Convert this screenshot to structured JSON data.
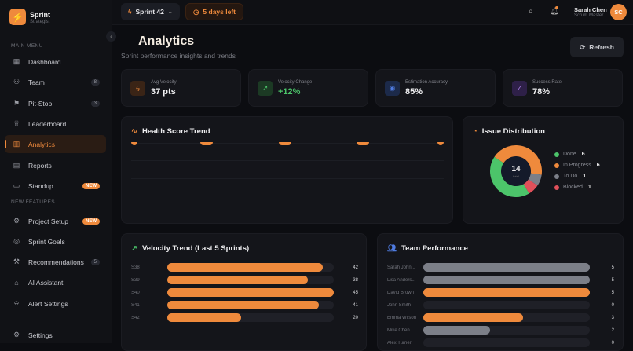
{
  "brand": {
    "name": "Sprint",
    "sub": "Strategist"
  },
  "sidebar": {
    "main_menu_label": "MAIN MENU",
    "new_features_label": "NEW FEATURES",
    "items": [
      {
        "label": "Dashboard",
        "icon": "grid-icon"
      },
      {
        "label": "Team",
        "icon": "users-icon",
        "badge": "8"
      },
      {
        "label": "Pit-Stop",
        "icon": "flag-icon",
        "badge": "3"
      },
      {
        "label": "Leaderboard",
        "icon": "trophy-icon"
      },
      {
        "label": "Analytics",
        "icon": "bar-chart-icon",
        "active": true
      },
      {
        "label": "Reports",
        "icon": "file-icon"
      },
      {
        "label": "Standup",
        "icon": "message-icon",
        "badge": "NEW"
      },
      {
        "label": "Project Setup",
        "icon": "gear-cog-icon",
        "badge": "NEW"
      },
      {
        "label": "Sprint Goals",
        "icon": "target-icon"
      },
      {
        "label": "Recommendations",
        "icon": "wrench-icon",
        "badge": "5"
      },
      {
        "label": "AI Assistant",
        "icon": "bot-icon"
      },
      {
        "label": "Alert Settings",
        "icon": "bell-icon"
      }
    ],
    "settings_label": "Settings"
  },
  "topbar": {
    "sprint": "Sprint 42",
    "days_left": "5 days left",
    "user_name": "Sarah Chen",
    "user_role": "Scrum Master",
    "avatar": "SC"
  },
  "page": {
    "title": "Analytics",
    "subtitle": "Sprint performance insights and trends",
    "refresh": "Refresh"
  },
  "stats": [
    {
      "label": "Avg Velocity",
      "value": "37 pts",
      "color": "#ef8a3c"
    },
    {
      "label": "Velocity Change",
      "value": "+12%",
      "color": "#4cc46a"
    },
    {
      "label": "Estimation Accuracy",
      "value": "85%",
      "color": "#4f7be0"
    },
    {
      "label": "Success Rate",
      "value": "78%",
      "color": "#a77be0"
    }
  ],
  "health": {
    "title": "Health Score Trend"
  },
  "issues": {
    "title": "Issue Distribution",
    "total": "14",
    "total_label": "total",
    "items": [
      {
        "label": "Done",
        "value": 6,
        "color": "#4cc46a"
      },
      {
        "label": "In Progress",
        "value": 6,
        "color": "#ef8a3c"
      },
      {
        "label": "To Do",
        "value": 1,
        "color": "#7c7f88"
      },
      {
        "label": "Blocked",
        "value": 1,
        "color": "#e0505a"
      }
    ]
  },
  "velocity": {
    "title": "Velocity Trend (Last 5 Sprints)",
    "max": 45,
    "rows": [
      {
        "label": "S38",
        "value": 42
      },
      {
        "label": "S39",
        "value": 38
      },
      {
        "label": "S40",
        "value": 45
      },
      {
        "label": "S41",
        "value": 41
      },
      {
        "label": "S42",
        "value": 20
      }
    ]
  },
  "team": {
    "title": "Team Performance",
    "max": 5,
    "rows": [
      {
        "label": "Sarah John...",
        "value": 5,
        "color": "#7c7f88"
      },
      {
        "label": "Lisa Anders...",
        "value": 5,
        "color": "#7c7f88"
      },
      {
        "label": "David Brown",
        "value": 5,
        "color": "#ef8a3c"
      },
      {
        "label": "John Smith",
        "value": 0,
        "color": "#7c7f88"
      },
      {
        "label": "Emma Wilson",
        "value": 3,
        "color": "#ef8a3c"
      },
      {
        "label": "Mike Chen",
        "value": 2,
        "color": "#7c7f88"
      },
      {
        "label": "Alex Turner",
        "value": 0,
        "color": "#7c7f88"
      }
    ]
  }
}
